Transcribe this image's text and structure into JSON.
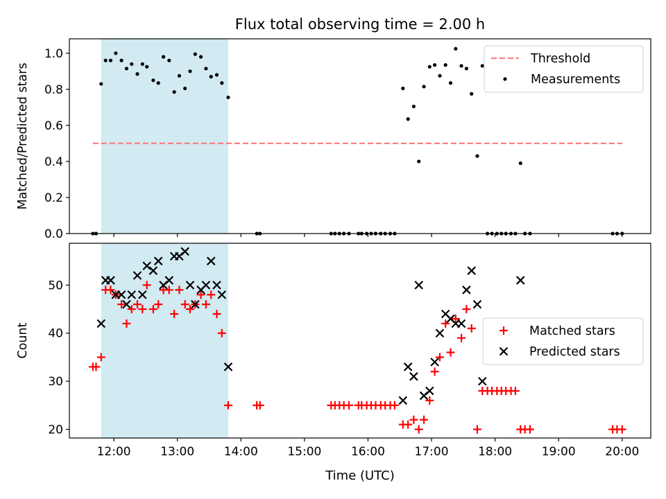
{
  "title": "Flux total observing time = 2.00 h",
  "x_ticks": [
    "12:00",
    "13:00",
    "14:00",
    "15:00",
    "16:00",
    "17:00",
    "18:00",
    "19:00",
    "20:00"
  ],
  "x_tick_values": [
    12,
    13,
    14,
    15,
    16,
    17,
    18,
    19,
    20
  ],
  "xlabel": "Time (UTC)",
  "xlim": [
    11.3,
    20.45
  ],
  "shaded_span": [
    11.8,
    13.8
  ],
  "colors": {
    "shade": "#add8e6",
    "threshold": "#ff7f7f",
    "measurements": "#000000",
    "matched": "#ff0000",
    "predicted": "#000000"
  },
  "chart_data": [
    {
      "type": "scatter",
      "ylabel": "Matched/Predicted stars",
      "ylim": [
        0.0,
        1.08
      ],
      "y_ticks": [
        "0.0",
        "0.2",
        "0.4",
        "0.6",
        "0.8",
        "1.0"
      ],
      "y_tick_values": [
        0.0,
        0.2,
        0.4,
        0.6,
        0.8,
        1.0
      ],
      "legend_position": "top-right",
      "threshold": {
        "name": "Threshold",
        "value": 0.5,
        "x_range": [
          11.67,
          20.0
        ],
        "style": "dashed"
      },
      "series": [
        {
          "name": "Measurements",
          "marker": "dot",
          "points": [
            [
              11.67,
              0.0
            ],
            [
              11.72,
              0.0
            ],
            [
              11.8,
              0.83
            ],
            [
              11.87,
              0.96
            ],
            [
              11.95,
              0.96
            ],
            [
              12.03,
              1.0
            ],
            [
              12.12,
              0.96
            ],
            [
              12.2,
              0.915
            ],
            [
              12.28,
              0.94
            ],
            [
              12.37,
              0.885
            ],
            [
              12.45,
              0.94
            ],
            [
              12.52,
              0.925
            ],
            [
              12.62,
              0.85
            ],
            [
              12.7,
              0.835
            ],
            [
              12.78,
              0.98
            ],
            [
              12.87,
              0.96
            ],
            [
              12.95,
              0.785
            ],
            [
              13.03,
              0.875
            ],
            [
              13.12,
              0.805
            ],
            [
              13.2,
              0.9
            ],
            [
              13.28,
              0.995
            ],
            [
              13.37,
              0.98
            ],
            [
              13.45,
              0.915
            ],
            [
              13.53,
              0.87
            ],
            [
              13.62,
              0.88
            ],
            [
              13.7,
              0.835
            ],
            [
              13.8,
              0.755
            ],
            [
              14.25,
              0.0
            ],
            [
              14.3,
              0.0
            ],
            [
              15.42,
              0.0
            ],
            [
              15.48,
              0.0
            ],
            [
              15.55,
              0.0
            ],
            [
              15.62,
              0.0
            ],
            [
              15.7,
              0.0
            ],
            [
              15.85,
              0.0
            ],
            [
              15.9,
              0.0
            ],
            [
              15.98,
              0.0
            ],
            [
              16.05,
              0.0
            ],
            [
              16.12,
              0.0
            ],
            [
              16.2,
              0.0
            ],
            [
              16.27,
              0.0
            ],
            [
              16.35,
              0.0
            ],
            [
              16.42,
              0.0
            ],
            [
              16.55,
              0.805
            ],
            [
              16.63,
              0.635
            ],
            [
              16.72,
              0.705
            ],
            [
              16.8,
              0.4
            ],
            [
              16.88,
              0.815
            ],
            [
              16.97,
              0.925
            ],
            [
              17.05,
              0.935
            ],
            [
              17.13,
              0.875
            ],
            [
              17.22,
              0.935
            ],
            [
              17.3,
              0.835
            ],
            [
              17.38,
              1.025
            ],
            [
              17.47,
              0.93
            ],
            [
              17.55,
              0.915
            ],
            [
              17.63,
              0.775
            ],
            [
              17.72,
              0.43
            ],
            [
              17.8,
              0.93
            ],
            [
              17.88,
              0.0
            ],
            [
              17.95,
              0.0
            ],
            [
              18.03,
              0.0
            ],
            [
              18.1,
              0.0
            ],
            [
              18.17,
              0.0
            ],
            [
              18.25,
              0.0
            ],
            [
              18.32,
              0.0
            ],
            [
              18.4,
              0.39
            ],
            [
              18.47,
              0.0
            ],
            [
              18.55,
              0.0
            ],
            [
              19.85,
              0.0
            ],
            [
              19.92,
              0.0
            ],
            [
              20.0,
              0.0
            ]
          ]
        }
      ]
    },
    {
      "type": "scatter",
      "ylabel": "Count",
      "ylim": [
        18.2,
        58.7
      ],
      "y_ticks": [
        "20",
        "30",
        "40",
        "50"
      ],
      "y_tick_values": [
        20,
        30,
        40,
        50
      ],
      "legend_position": "center-right",
      "series": [
        {
          "name": "Matched stars",
          "marker": "plus",
          "points": [
            [
              11.67,
              33
            ],
            [
              11.72,
              33
            ],
            [
              11.8,
              35
            ],
            [
              11.87,
              49
            ],
            [
              11.95,
              49
            ],
            [
              12.03,
              48
            ],
            [
              12.12,
              46
            ],
            [
              12.2,
              42
            ],
            [
              12.28,
              45
            ],
            [
              12.37,
              46
            ],
            [
              12.45,
              45
            ],
            [
              12.52,
              50
            ],
            [
              12.62,
              45
            ],
            [
              12.7,
              46
            ],
            [
              12.78,
              49
            ],
            [
              12.87,
              49
            ],
            [
              12.95,
              44
            ],
            [
              13.03,
              49
            ],
            [
              13.12,
              46
            ],
            [
              13.2,
              45
            ],
            [
              13.28,
              46
            ],
            [
              13.37,
              48
            ],
            [
              13.45,
              46
            ],
            [
              13.53,
              48
            ],
            [
              13.62,
              44
            ],
            [
              13.7,
              40
            ],
            [
              13.8,
              25
            ],
            [
              14.25,
              25
            ],
            [
              14.3,
              25
            ],
            [
              15.42,
              25
            ],
            [
              15.48,
              25
            ],
            [
              15.55,
              25
            ],
            [
              15.62,
              25
            ],
            [
              15.7,
              25
            ],
            [
              15.85,
              25
            ],
            [
              15.9,
              25
            ],
            [
              15.98,
              25
            ],
            [
              16.05,
              25
            ],
            [
              16.12,
              25
            ],
            [
              16.2,
              25
            ],
            [
              16.27,
              25
            ],
            [
              16.35,
              25
            ],
            [
              16.42,
              25
            ],
            [
              16.55,
              21
            ],
            [
              16.63,
              21
            ],
            [
              16.72,
              22
            ],
            [
              16.8,
              20
            ],
            [
              16.88,
              22
            ],
            [
              16.97,
              26
            ],
            [
              17.05,
              32
            ],
            [
              17.13,
              35
            ],
            [
              17.22,
              42
            ],
            [
              17.3,
              36
            ],
            [
              17.38,
              43
            ],
            [
              17.47,
              39
            ],
            [
              17.55,
              45
            ],
            [
              17.63,
              41
            ],
            [
              17.72,
              20
            ],
            [
              17.8,
              28
            ],
            [
              17.88,
              28
            ],
            [
              17.95,
              28
            ],
            [
              18.03,
              28
            ],
            [
              18.1,
              28
            ],
            [
              18.17,
              28
            ],
            [
              18.25,
              28
            ],
            [
              18.32,
              28
            ],
            [
              18.4,
              20
            ],
            [
              18.47,
              20
            ],
            [
              18.55,
              20
            ],
            [
              19.85,
              20
            ],
            [
              19.92,
              20
            ],
            [
              20.0,
              20
            ]
          ]
        },
        {
          "name": "Predicted stars",
          "marker": "x",
          "points": [
            [
              11.8,
              42
            ],
            [
              11.87,
              51
            ],
            [
              11.95,
              51
            ],
            [
              12.03,
              48
            ],
            [
              12.12,
              48
            ],
            [
              12.2,
              46
            ],
            [
              12.28,
              48
            ],
            [
              12.37,
              52
            ],
            [
              12.45,
              48
            ],
            [
              12.52,
              54
            ],
            [
              12.62,
              53
            ],
            [
              12.7,
              55
            ],
            [
              12.78,
              50
            ],
            [
              12.87,
              51
            ],
            [
              12.95,
              56
            ],
            [
              13.03,
              56
            ],
            [
              13.12,
              57
            ],
            [
              13.2,
              50
            ],
            [
              13.28,
              46
            ],
            [
              13.37,
              49
            ],
            [
              13.45,
              50
            ],
            [
              13.53,
              55
            ],
            [
              13.62,
              50
            ],
            [
              13.7,
              48
            ],
            [
              13.8,
              33
            ],
            [
              16.55,
              26
            ],
            [
              16.63,
              33
            ],
            [
              16.72,
              31
            ],
            [
              16.8,
              50
            ],
            [
              16.88,
              27
            ],
            [
              16.97,
              28
            ],
            [
              17.05,
              34
            ],
            [
              17.13,
              40
            ],
            [
              17.22,
              44
            ],
            [
              17.3,
              43
            ],
            [
              17.38,
              42
            ],
            [
              17.47,
              42
            ],
            [
              17.55,
              49
            ],
            [
              17.63,
              53
            ],
            [
              17.72,
              46
            ],
            [
              17.8,
              30
            ],
            [
              18.4,
              51
            ]
          ]
        }
      ]
    }
  ]
}
